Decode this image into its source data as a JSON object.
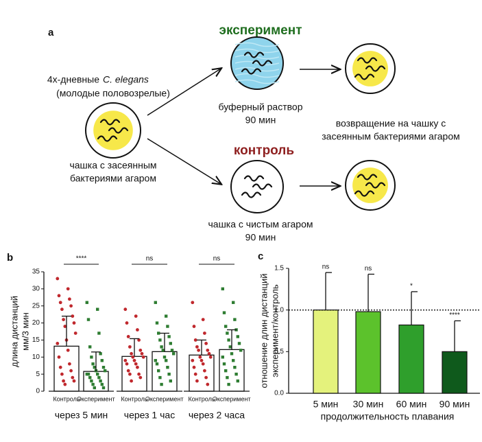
{
  "panel_a": {
    "label": "a",
    "experiment_title": "эксперимент",
    "control_title": "контроль",
    "worm_age": "4х-дневные",
    "species": "C. elegans",
    "worm_stage": "(молодые половозрелые)",
    "start_plate": [
      "чашка с засеянным",
      "бактериями агаром"
    ],
    "buffer": [
      "буферный раствор",
      "90 мин"
    ],
    "return": [
      "возвращение на чашку с",
      "засеянным бактериями агаром"
    ],
    "clean_plate": [
      "чашка с чистым агаром",
      "90 мин"
    ]
  },
  "chart_data": [
    {
      "type": "bar_scatter",
      "panel_label": "b",
      "ylabel": [
        "длина дистанций",
        "мм/3 мин"
      ],
      "ylim": [
        0,
        35
      ],
      "yticks": [
        0,
        5,
        10,
        15,
        20,
        25,
        30,
        35
      ],
      "groups": [
        "через 5 мин",
        "через 1 час",
        "через 2 часа"
      ],
      "significance": [
        "****",
        "ns",
        "ns"
      ],
      "categories": [
        "Контроль",
        "Эксперимент",
        "Контроль",
        "Эксперимент",
        "Контроль",
        "Эксперимент"
      ],
      "values": [
        13.2,
        5.8,
        10.2,
        11.6,
        10.6,
        12.2
      ],
      "errors": [
        8.8,
        5.7,
        5.2,
        5.4,
        4.4,
        5.8
      ],
      "bar_color": "#ffffff",
      "point_colors": [
        "#c0282d",
        "#2e7d32",
        "#c0282d",
        "#2e7d32",
        "#c0282d",
        "#2e7d32"
      ],
      "point_markers": [
        "circle",
        "square",
        "circle",
        "square",
        "circle",
        "square"
      ],
      "points": [
        [
          33,
          30,
          28,
          27,
          26,
          25,
          24,
          22,
          21,
          20,
          19,
          17,
          15,
          14,
          12,
          10,
          8,
          7,
          6,
          5,
          4,
          3,
          3,
          2
        ],
        [
          26,
          24,
          21,
          17,
          13,
          11,
          10,
          9,
          8,
          7,
          7,
          6,
          6,
          5,
          5,
          5,
          4,
          4,
          3,
          3,
          2,
          2,
          1,
          1
        ],
        [
          24,
          22,
          20,
          18,
          16,
          15,
          13,
          12,
          11,
          11,
          10,
          10,
          9,
          9,
          8,
          8,
          7,
          6,
          5,
          5,
          4,
          3
        ],
        [
          26,
          22,
          20,
          19,
          17,
          16,
          15,
          14,
          13,
          12,
          12,
          11,
          10,
          9,
          9,
          8,
          7,
          6,
          5,
          4,
          3,
          2
        ],
        [
          26,
          21,
          19,
          17,
          15,
          14,
          13,
          12,
          12,
          11,
          10,
          10,
          9,
          9,
          8,
          7,
          6,
          5,
          4,
          3,
          2
        ],
        [
          30,
          26,
          23,
          21,
          19,
          18,
          17,
          16,
          15,
          14,
          13,
          12,
          11,
          10,
          9,
          8,
          7,
          6,
          5,
          4,
          3,
          2
        ]
      ]
    },
    {
      "type": "bar",
      "panel_label": "c",
      "ylabel": [
        "отношение длин дистанций",
        "эксперимент/контроль"
      ],
      "xlabel": "продолжительность плавания",
      "categories": [
        "5 мин",
        "30 мин",
        "60 мин",
        "90 мин"
      ],
      "values": [
        1.0,
        0.98,
        0.82,
        0.5
      ],
      "errors": [
        0.45,
        0.45,
        0.4,
        0.37
      ],
      "colors": [
        "#e4f27c",
        "#5cc22c",
        "#2f9f2c",
        "#0f5a1c"
      ],
      "significance": [
        "ns",
        "ns",
        "*",
        "****"
      ],
      "ylim": [
        0,
        1.5
      ],
      "yticks": [
        {
          "value": 0,
          "label": "0.0"
        },
        0.5,
        {
          "value": 1,
          "label": "1.0"
        },
        1.5
      ],
      "reference_line": 1
    }
  ]
}
